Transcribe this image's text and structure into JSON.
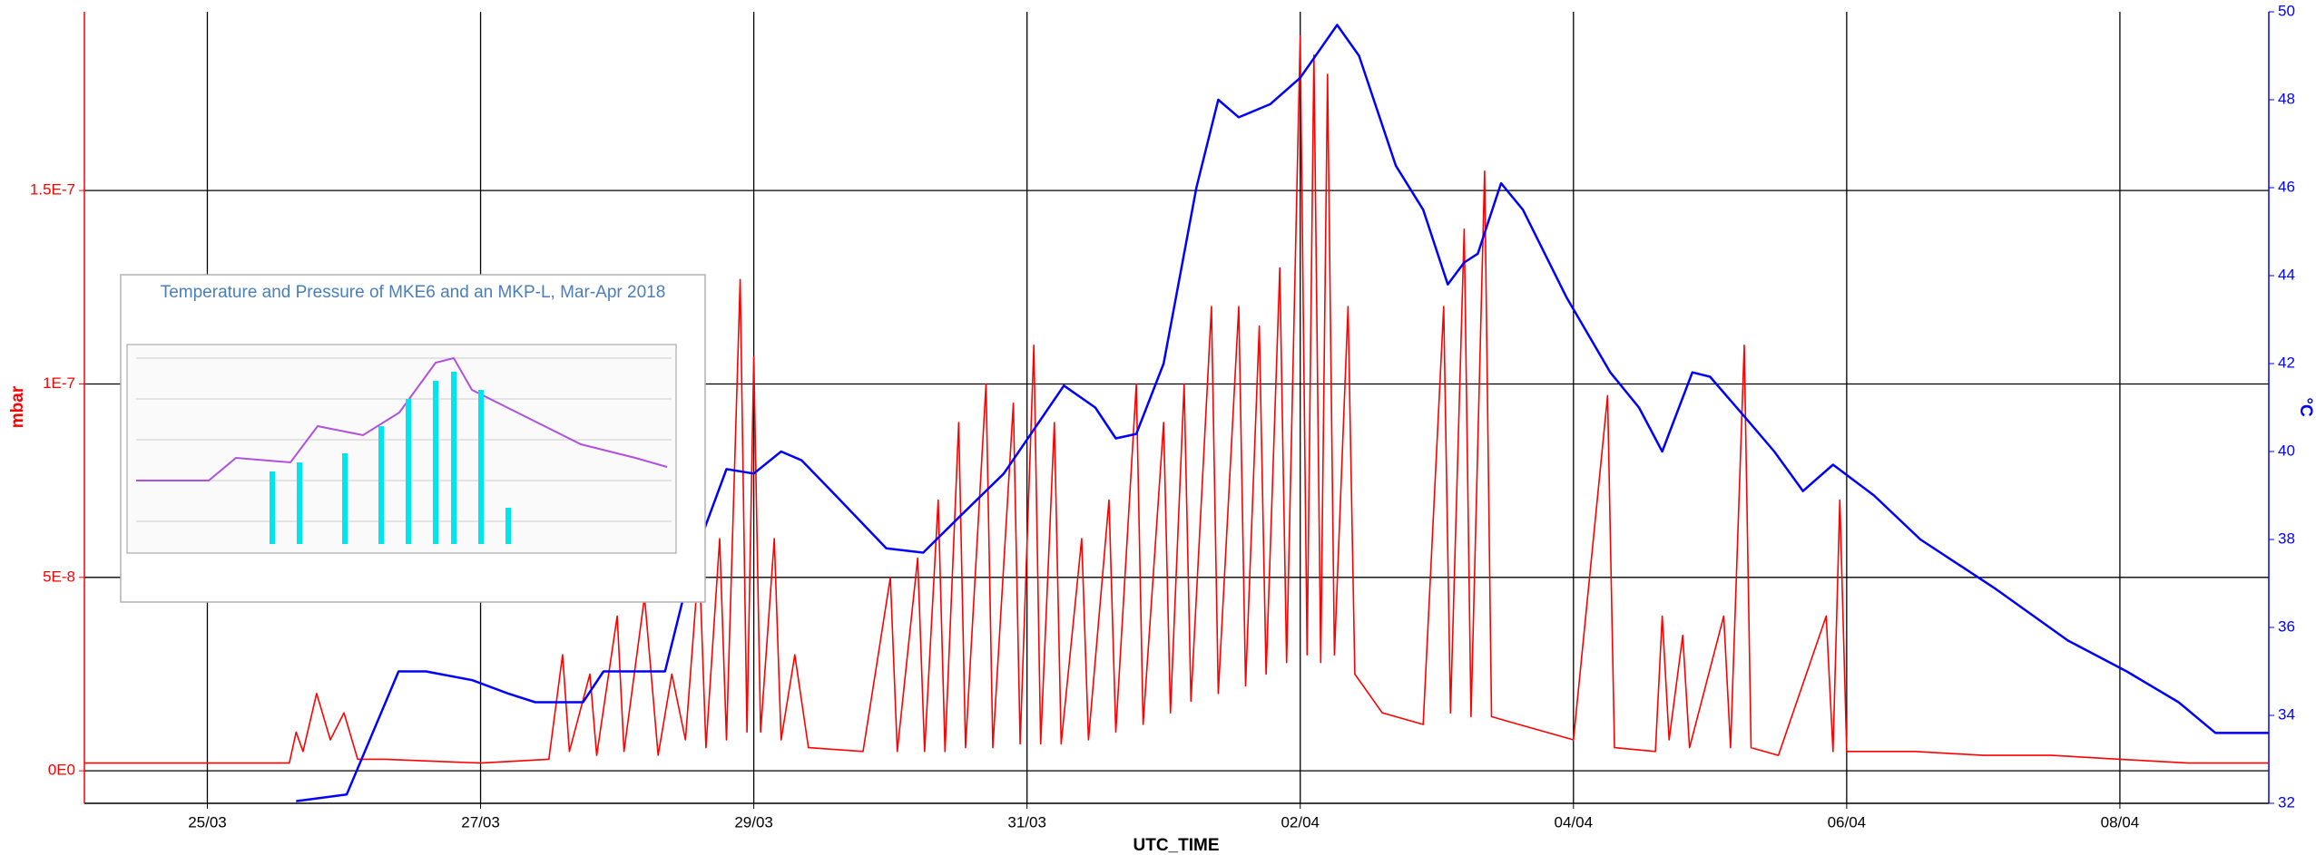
{
  "chart_data": {
    "type": "line",
    "x_label": "UTC_TIME",
    "y_label": "mbar",
    "y2_label": "°C",
    "xlim": [
      24.1,
      40.09
    ],
    "xticks": [
      {
        "value": 25,
        "label": "25/03"
      },
      {
        "value": 27,
        "label": "27/03"
      },
      {
        "value": 29,
        "label": "29/03"
      },
      {
        "value": 31,
        "label": "31/03"
      },
      {
        "value": 33,
        "label": "02/04"
      },
      {
        "value": 35,
        "label": "04/04"
      },
      {
        "value": 37,
        "label": "06/04"
      },
      {
        "value": 39,
        "label": "08/04"
      }
    ],
    "ylim": [
      -8.4e-09,
      1.962e-07
    ],
    "yticks": [
      {
        "value": 0,
        "label": "0E0"
      },
      {
        "value": 5e-08,
        "label": "5E-8"
      },
      {
        "value": 1e-07,
        "label": "1E-7"
      },
      {
        "value": 1.5e-07,
        "label": "1.5E-7"
      }
    ],
    "y2lim": [
      32,
      50
    ],
    "y2ticks": [
      32,
      34,
      36,
      38,
      40,
      42,
      44,
      46,
      48,
      50
    ],
    "grid": true,
    "series": [
      {
        "color": "#ff0000",
        "x": [
          24.1,
          25.0,
          25.6,
          25.65,
          25.7,
          25.8,
          25.9,
          26.0,
          26.1,
          26.3,
          27.0,
          27.5,
          27.6,
          27.65,
          27.8,
          27.85,
          28.0,
          28.05,
          28.2,
          28.3,
          28.4,
          28.5,
          28.6,
          28.65,
          28.75,
          28.8,
          28.9,
          28.95,
          29.0,
          29.05,
          29.15,
          29.2,
          29.3,
          29.4,
          29.8,
          30.0,
          30.05,
          30.2,
          30.25,
          30.35,
          30.4,
          30.5,
          30.55,
          30.7,
          30.75,
          30.9,
          30.95,
          31.05,
          31.1,
          31.2,
          31.25,
          31.4,
          31.45,
          31.6,
          31.65,
          31.8,
          31.85,
          32.0,
          32.05,
          32.15,
          32.2,
          32.35,
          32.4,
          32.55,
          32.6,
          32.7,
          32.75,
          32.85,
          32.9,
          33.0,
          33.05,
          33.1,
          33.15,
          33.2,
          33.25,
          33.35,
          33.4,
          33.6,
          33.9,
          34.05,
          34.1,
          34.2,
          34.25,
          34.35,
          34.4,
          34.6,
          35.0,
          35.25,
          35.3,
          35.6,
          35.65,
          35.7,
          35.8,
          35.85,
          36.1,
          36.15,
          36.25,
          36.3,
          36.5,
          36.85,
          36.9,
          36.95,
          37.0,
          37.5,
          38.0,
          38.5,
          39.0,
          39.5,
          40.09
        ],
        "values": [
          2e-09,
          2e-09,
          2e-09,
          1e-08,
          5e-09,
          2e-08,
          8e-09,
          1.5e-08,
          3e-09,
          3e-09,
          2e-09,
          3e-09,
          3e-08,
          5e-09,
          2.5e-08,
          4e-09,
          4e-08,
          5e-09,
          4.5e-08,
          4e-09,
          2.5e-08,
          8e-09,
          5.5e-08,
          6e-09,
          6e-08,
          8e-09,
          1.27e-07,
          1e-08,
          1.07e-07,
          1e-08,
          6e-08,
          8e-09,
          3e-08,
          6e-09,
          5e-09,
          5e-08,
          5e-09,
          5.5e-08,
          5e-09,
          7e-08,
          5e-09,
          9e-08,
          6e-09,
          1e-07,
          6e-09,
          9.5e-08,
          7e-09,
          1.1e-07,
          7e-09,
          9e-08,
          7e-09,
          6e-08,
          8e-09,
          7e-08,
          1e-08,
          1e-07,
          1.2e-08,
          9e-08,
          1.5e-08,
          1e-07,
          1.8e-08,
          1.2e-07,
          2e-08,
          1.2e-07,
          2.2e-08,
          1.15e-07,
          2.5e-08,
          1.3e-07,
          2.8e-08,
          1.9e-07,
          3e-08,
          1.85e-07,
          2.8e-08,
          1.8e-07,
          3e-08,
          1.2e-07,
          2.5e-08,
          1.5e-08,
          1.2e-08,
          1.2e-07,
          1.5e-08,
          1.4e-07,
          1.4e-08,
          1.55e-07,
          1.4e-08,
          1.2e-08,
          8e-09,
          9.7e-08,
          6e-09,
          5e-09,
          4e-08,
          8e-09,
          3.5e-08,
          6e-09,
          4e-08,
          6e-09,
          1.1e-07,
          6e-09,
          4e-09,
          4e-08,
          5e-09,
          7e-08,
          5e-09,
          5e-09,
          4e-09,
          4e-09,
          3e-09,
          2e-09,
          2e-09
        ]
      },
      {
        "color": "#0000ff",
        "axis": "y2",
        "x": [
          25.65,
          26.02,
          26.4,
          26.6,
          26.94,
          27.2,
          27.4,
          27.75,
          27.9,
          28.35,
          28.55,
          28.8,
          29.0,
          29.2,
          29.35,
          29.6,
          29.97,
          30.24,
          30.5,
          30.83,
          31.05,
          31.27,
          31.5,
          31.65,
          31.8,
          32.0,
          32.24,
          32.4,
          32.55,
          32.78,
          33.0,
          33.27,
          33.43,
          33.7,
          33.9,
          34.08,
          34.2,
          34.3,
          34.47,
          34.63,
          34.95,
          35.27,
          35.48,
          35.65,
          35.87,
          36.0,
          36.25,
          36.47,
          36.68,
          36.9,
          37.2,
          37.54,
          38.08,
          38.62,
          39.05,
          39.43,
          39.7,
          40.09
        ],
        "values": [
          32.05,
          32.2,
          35.0,
          35.0,
          34.8,
          34.5,
          34.3,
          34.3,
          35.0,
          35.0,
          37.5,
          39.6,
          39.5,
          40.0,
          39.8,
          39.0,
          37.8,
          37.7,
          38.5,
          39.5,
          40.5,
          41.5,
          41.0,
          40.3,
          40.4,
          42.0,
          46.0,
          48.0,
          47.6,
          47.9,
          48.5,
          49.7,
          49.0,
          46.5,
          45.5,
          43.8,
          44.3,
          44.5,
          46.1,
          45.5,
          43.5,
          41.8,
          41.0,
          40.0,
          41.8,
          41.7,
          40.8,
          40.0,
          39.1,
          39.7,
          39.0,
          38.0,
          36.9,
          35.7,
          35.0,
          34.3,
          33.6,
          33.6
        ]
      }
    ],
    "inset_title": "Temperature and Pressure of MKE6 and an MKP-L, Mar-Apr 2018"
  }
}
